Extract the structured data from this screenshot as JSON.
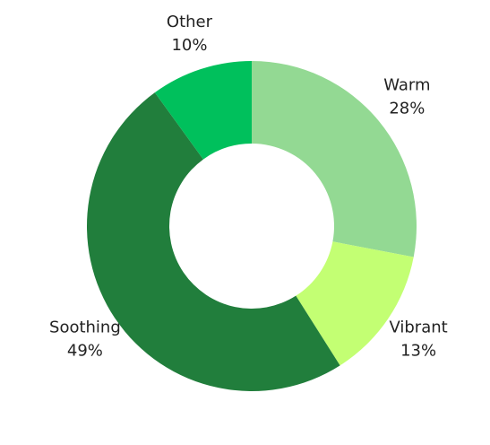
{
  "chart_data": {
    "type": "donut",
    "categories": [
      "Warm",
      "Vibrant",
      "Soothing",
      "Other"
    ],
    "values": [
      28,
      13,
      49,
      10
    ],
    "value_labels": [
      "28%",
      "13%",
      "49%",
      "10%"
    ],
    "colors": [
      "#93d993",
      "#c3ff73",
      "#217e3c",
      "#00c05c"
    ]
  }
}
